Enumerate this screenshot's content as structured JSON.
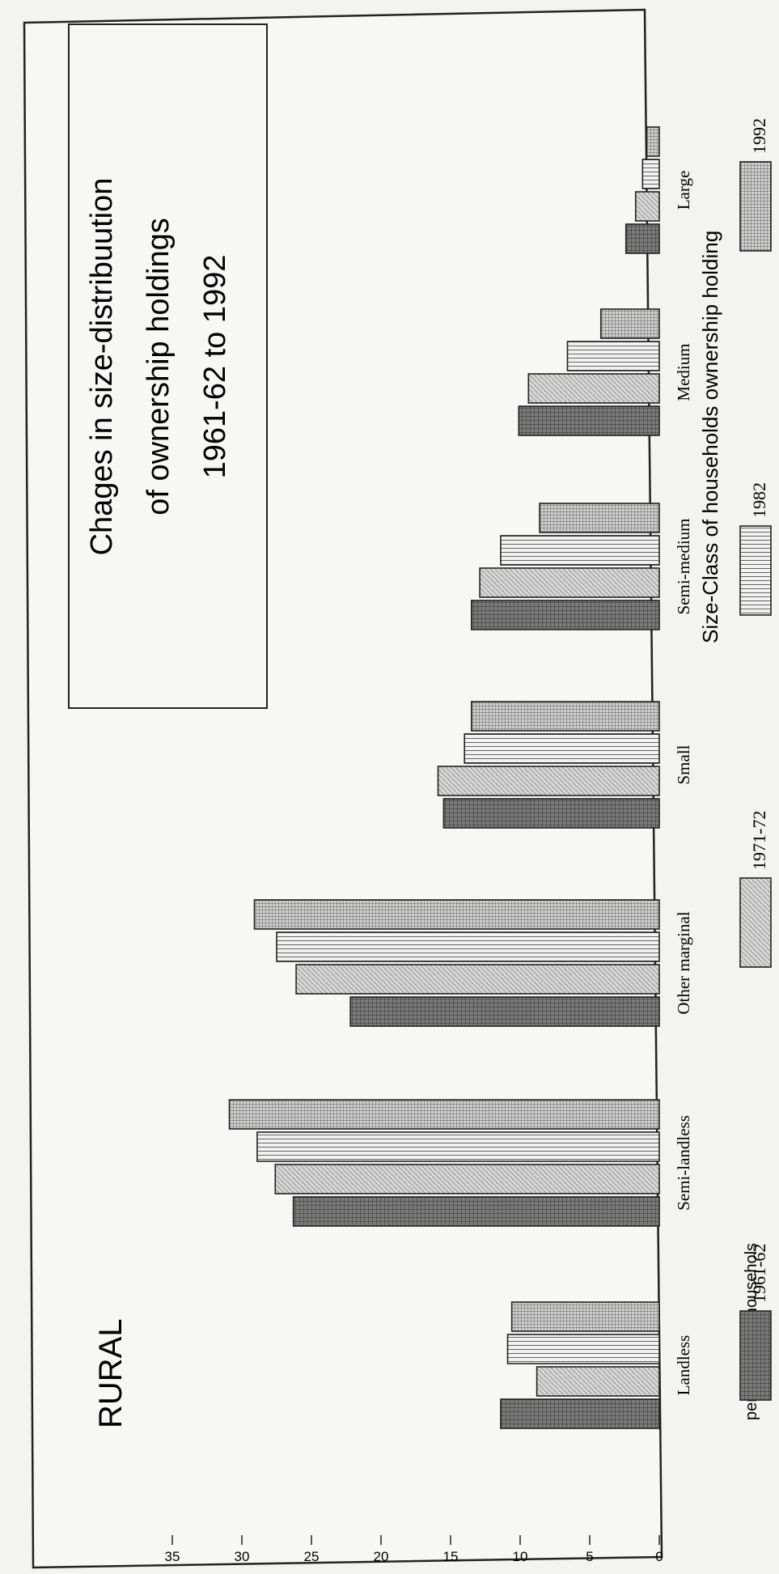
{
  "chart_data": {
    "type": "bar",
    "orientation": "vertical bars, page rotated 90 degrees",
    "region_label": "RURAL",
    "title_lines": [
      "Chages in size-distribuution",
      "of ownership holdings",
      "1961-62 to 1992"
    ],
    "xlabel": "Size-Class of households ownership holding",
    "ylabel": "percentage of househols",
    "ylim": [
      0,
      35
    ],
    "yticks": [
      "0",
      "5",
      "10",
      "15",
      "20",
      "25",
      "30",
      "35"
    ],
    "categories": [
      "Landless",
      "Semi-landless",
      "Other marginal",
      "Small",
      "Semi-medium",
      "Medium",
      "Large"
    ],
    "series": [
      {
        "name": "1961-62",
        "values": [
          11.4,
          26.3,
          22.2,
          15.5,
          13.5,
          10.1,
          2.4
        ],
        "pattern": "dark-grid"
      },
      {
        "name": "1971-72",
        "values": [
          8.8,
          27.6,
          26.1,
          15.9,
          12.9,
          9.4,
          1.7
        ],
        "pattern": "light-diagonal"
      },
      {
        "name": "1982",
        "values": [
          10.9,
          28.9,
          27.5,
          14.0,
          11.4,
          6.6,
          1.2
        ],
        "pattern": "vertical-lines"
      },
      {
        "name": "1992",
        "values": [
          10.6,
          30.9,
          29.1,
          13.5,
          8.6,
          4.2,
          0.9
        ],
        "pattern": "fine-grid"
      }
    ],
    "grid": false,
    "legend_position": "bottom"
  }
}
